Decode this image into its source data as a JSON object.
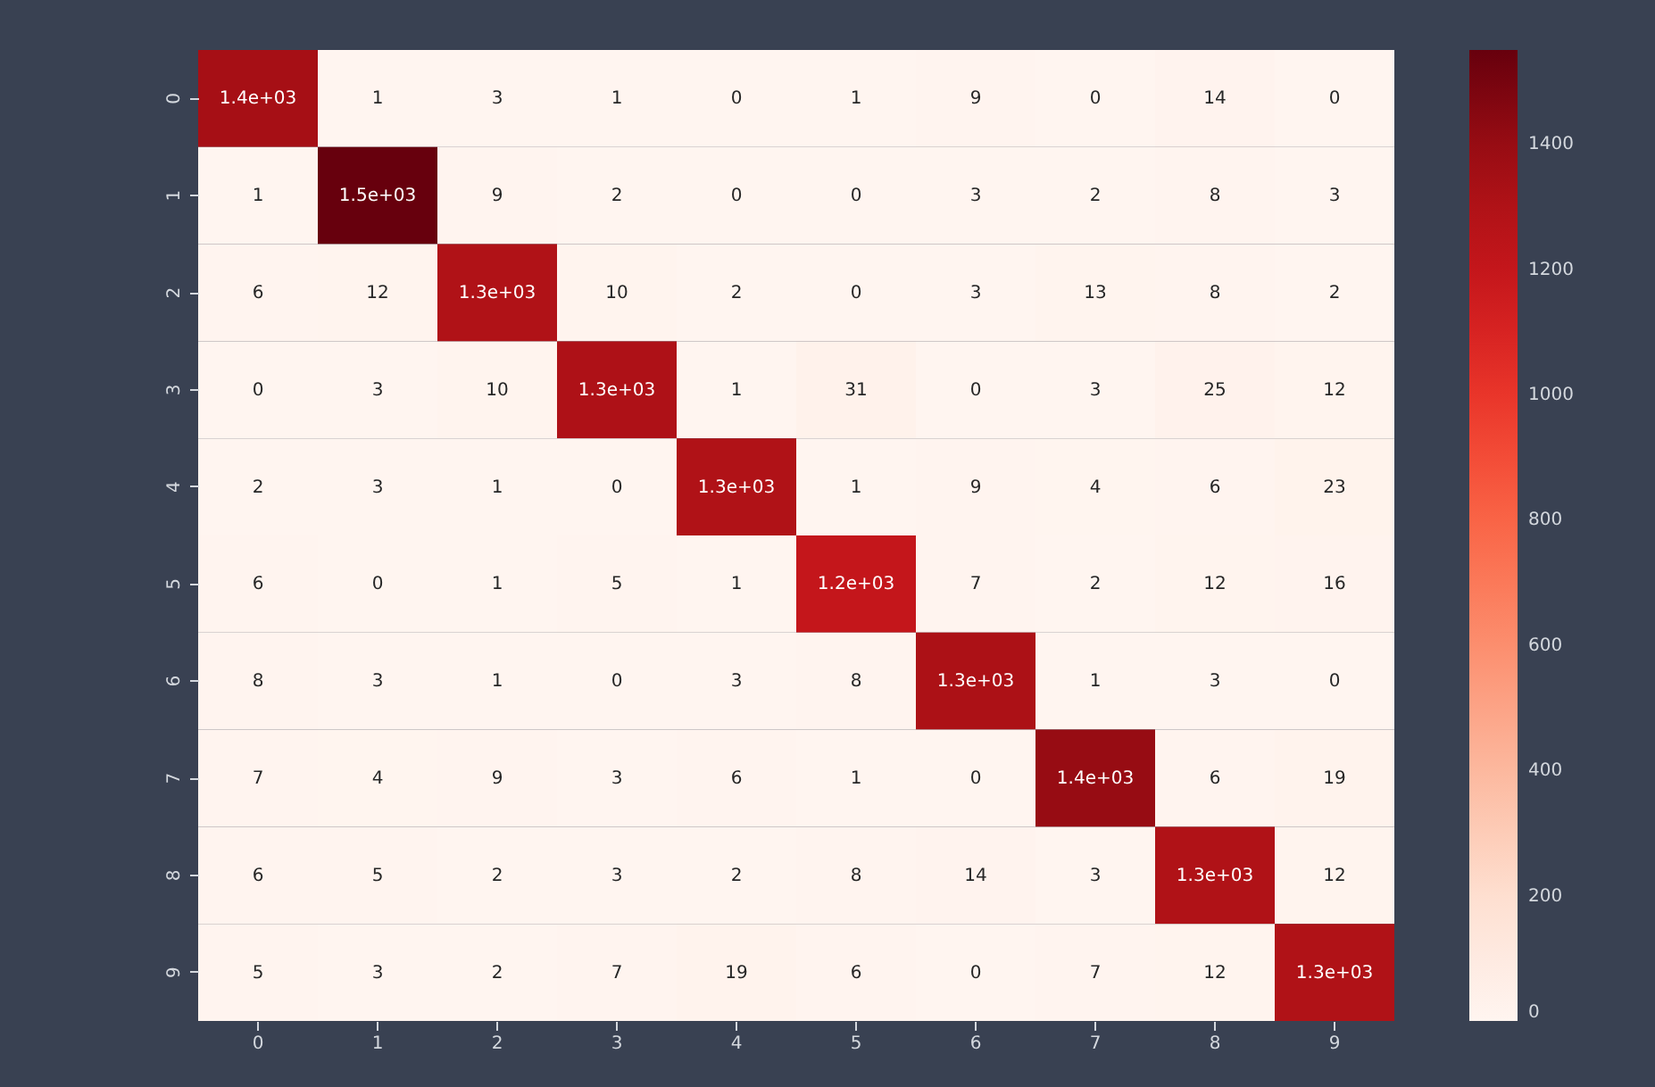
{
  "chart_data": {
    "type": "heatmap",
    "categories": [
      "0",
      "1",
      "2",
      "3",
      "4",
      "5",
      "6",
      "7",
      "8",
      "9"
    ],
    "y_categories": [
      "0",
      "1",
      "2",
      "3",
      "4",
      "5",
      "6",
      "7",
      "8",
      "9"
    ],
    "cells": [
      [
        1350,
        1,
        3,
        1,
        0,
        1,
        9,
        0,
        14,
        0
      ],
      [
        1,
        1550,
        9,
        2,
        0,
        0,
        3,
        2,
        8,
        3
      ],
      [
        6,
        12,
        1300,
        10,
        2,
        0,
        3,
        13,
        8,
        2
      ],
      [
        0,
        3,
        10,
        1310,
        1,
        31,
        0,
        3,
        25,
        12
      ],
      [
        2,
        3,
        1,
        0,
        1300,
        1,
        9,
        4,
        6,
        23
      ],
      [
        6,
        0,
        1,
        5,
        1,
        1200,
        7,
        2,
        12,
        16
      ],
      [
        8,
        3,
        1,
        0,
        3,
        8,
        1320,
        1,
        3,
        0
      ],
      [
        7,
        4,
        9,
        3,
        6,
        1,
        0,
        1400,
        6,
        19
      ],
      [
        6,
        5,
        2,
        3,
        2,
        8,
        14,
        3,
        1300,
        12
      ],
      [
        5,
        3,
        2,
        7,
        19,
        6,
        0,
        7,
        12,
        1300
      ]
    ],
    "cell_labels": [
      [
        "1.4e+03",
        "1",
        "3",
        "1",
        "0",
        "1",
        "9",
        "0",
        "14",
        "0"
      ],
      [
        "1",
        "1.5e+03",
        "9",
        "2",
        "0",
        "0",
        "3",
        "2",
        "8",
        "3"
      ],
      [
        "6",
        "12",
        "1.3e+03",
        "10",
        "2",
        "0",
        "3",
        "13",
        "8",
        "2"
      ],
      [
        "0",
        "3",
        "10",
        "1.3e+03",
        "1",
        "31",
        "0",
        "3",
        "25",
        "12"
      ],
      [
        "2",
        "3",
        "1",
        "0",
        "1.3e+03",
        "1",
        "9",
        "4",
        "6",
        "23"
      ],
      [
        "6",
        "0",
        "1",
        "5",
        "1",
        "1.2e+03",
        "7",
        "2",
        "12",
        "16"
      ],
      [
        "8",
        "3",
        "1",
        "0",
        "3",
        "8",
        "1.3e+03",
        "1",
        "3",
        "0"
      ],
      [
        "7",
        "4",
        "9",
        "3",
        "6",
        "1",
        "0",
        "1.4e+03",
        "6",
        "19"
      ],
      [
        "6",
        "5",
        "2",
        "3",
        "2",
        "8",
        "14",
        "3",
        "1.3e+03",
        "12"
      ],
      [
        "5",
        "3",
        "2",
        "7",
        "19",
        "6",
        "0",
        "7",
        "12",
        "1.3e+03"
      ]
    ],
    "clim": [
      0,
      1550
    ],
    "cticks": [
      0,
      200,
      400,
      600,
      800,
      1000,
      1200,
      1400
    ]
  }
}
